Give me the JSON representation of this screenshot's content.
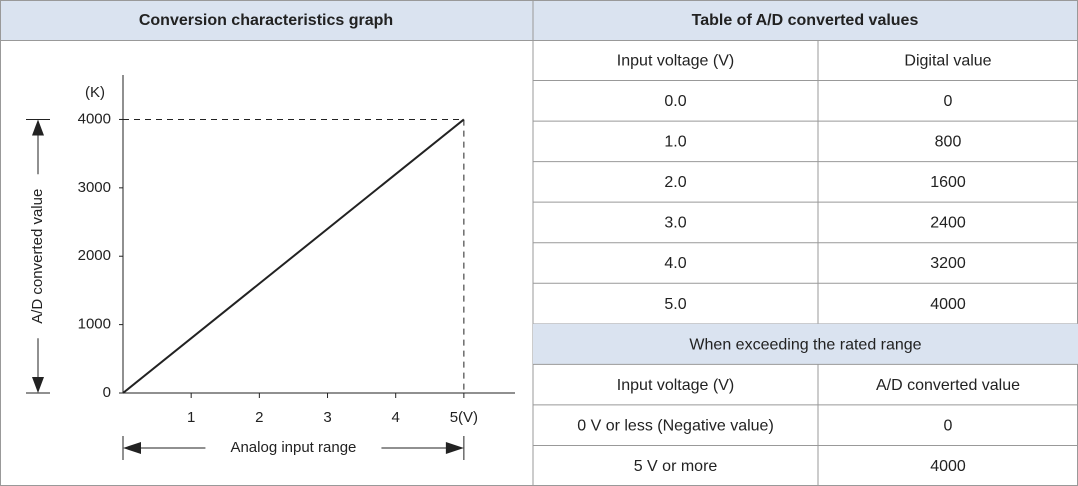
{
  "left_header": "Conversion characteristics graph",
  "chart_data": {
    "type": "line",
    "y_unit": "(K)",
    "ylabel": "A/D converted value",
    "xlabel": "Analog input range",
    "x": [
      0,
      5
    ],
    "values": [
      0,
      4000
    ],
    "color": "#222222",
    "xlim": [
      0,
      5.75
    ],
    "ylim": [
      0,
      4650
    ],
    "xticks": [
      1,
      2,
      3,
      4,
      {
        "value": 5,
        "label": "5(V)"
      }
    ],
    "yticks": [
      0,
      1000,
      2000,
      3000,
      4000
    ]
  },
  "table": {
    "header": "Table of A/D converted values",
    "columns": [
      "Input voltage (V)",
      "Digital value"
    ],
    "rows": [
      [
        "0.0",
        "0"
      ],
      [
        "1.0",
        "800"
      ],
      [
        "2.0",
        "1600"
      ],
      [
        "3.0",
        "2400"
      ],
      [
        "4.0",
        "3200"
      ],
      [
        "5.0",
        "4000"
      ]
    ],
    "section": {
      "title": "When exceeding the rated range",
      "columns": [
        "Input voltage (V)",
        "A/D converted value"
      ],
      "rows": [
        [
          "0 V or less (Negative value)",
          "0"
        ],
        [
          "5 V or more",
          "4000"
        ]
      ]
    }
  }
}
